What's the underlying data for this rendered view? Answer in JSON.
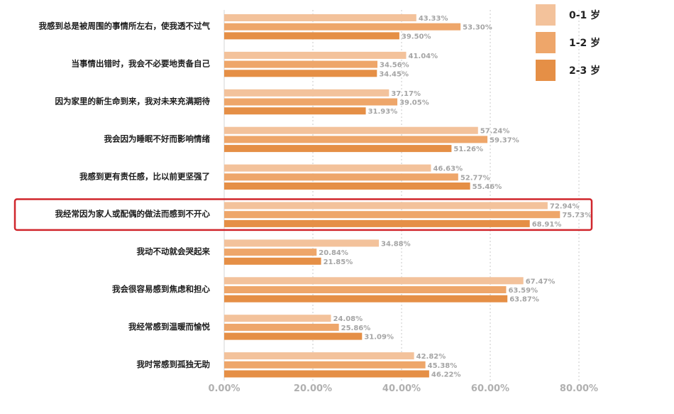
{
  "chart_data": {
    "type": "bar",
    "orientation": "horizontal",
    "categories": [
      "我感到总是被周围的事情所左右，使我透不过气",
      "当事情出错时，我会不必要地责备自己",
      "因为家里的新生命到来，我对未来充满期待",
      "我会因为睡眠不好而影响情绪",
      "我感到更有责任感，比以前更坚强了",
      "我经常因为家人或配偶的做法而感到不开心",
      "我动不动就会哭起来",
      "我会很容易感到焦虑和担心",
      "我经常感到温暖而愉悦",
      "我时常感到孤独无助"
    ],
    "series": [
      {
        "name": "0-1 岁",
        "values": [
          43.33,
          41.04,
          37.17,
          57.24,
          46.63,
          72.94,
          34.88,
          67.47,
          24.08,
          42.82
        ],
        "labels": [
          "43.33%",
          "41.04%",
          "37.17%",
          "57.24%",
          "46.63%",
          "72.94%",
          "34.88%",
          "67.47%",
          "24.08%",
          "42.82%"
        ]
      },
      {
        "name": "1-2 岁",
        "values": [
          53.3,
          34.56,
          39.05,
          59.37,
          52.77,
          75.73,
          20.84,
          63.59,
          25.86,
          45.38
        ],
        "labels": [
          "53.30%",
          "34.56%",
          "39.05%",
          "59.37%",
          "52.77%",
          "75.73%",
          "20.84%",
          "63.59%",
          "25.86%",
          "45.38%"
        ]
      },
      {
        "name": "2-3 岁",
        "values": [
          39.5,
          34.45,
          31.93,
          51.26,
          55.46,
          68.91,
          21.85,
          63.87,
          31.09,
          46.22
        ],
        "labels": [
          "39.50%",
          "34.45%",
          "31.93%",
          "51.26%",
          "55.46%",
          "68.91%",
          "21.85%",
          "63.87%",
          "31.09%",
          "46.22%"
        ]
      }
    ],
    "xticks": [
      "0.00%",
      "20.00%",
      "40.00%",
      "60.00%",
      "80.00%"
    ],
    "xlim": [
      0,
      80
    ],
    "grid": true,
    "legend_position": "top-right",
    "highlighted_category": "我经常因为家人或配偶的做法而感到不开心",
    "colors": {
      "series": [
        "#f3c29b",
        "#eea66a",
        "#e58f46"
      ],
      "highlight_box": "#d0262c",
      "grid": "#c8c8c8",
      "category_text": "#1c1c1c",
      "value_text": "#a5a5a5",
      "tick_text": "#b0b0b0"
    }
  }
}
